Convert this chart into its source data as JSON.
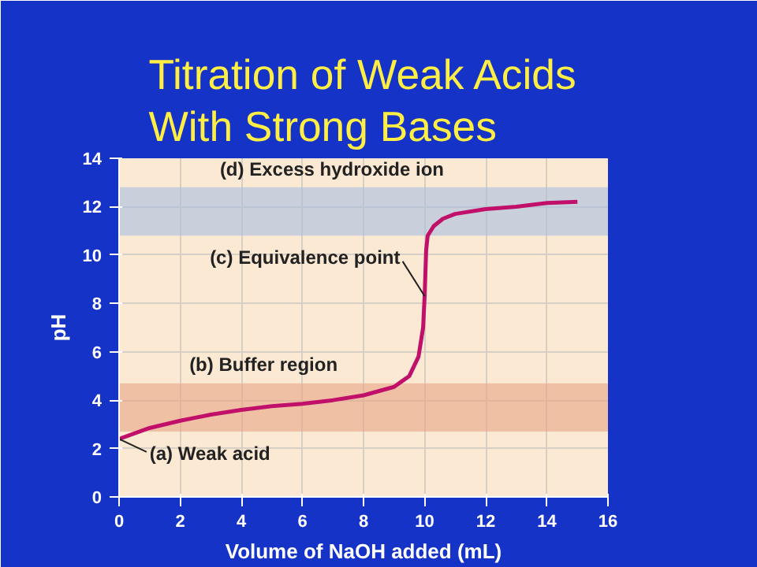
{
  "chart_data": {
    "type": "line",
    "title": "Titration of Weak Acids With Strong Bases",
    "xlabel": "Volume of NaOH added (mL)",
    "ylabel": "pH",
    "series": [
      {
        "color": "#c0106a",
        "x": [
          0,
          1,
          2,
          3,
          4,
          5,
          6,
          7,
          8,
          9,
          9.5,
          9.8,
          9.95,
          10,
          10.05,
          10.1,
          10.3,
          10.6,
          11,
          12,
          13,
          14,
          15
        ],
        "values": [
          2.4,
          2.85,
          3.15,
          3.4,
          3.6,
          3.75,
          3.85,
          4.0,
          4.2,
          4.55,
          5.0,
          5.8,
          7,
          8.3,
          10.2,
          10.8,
          11.2,
          11.5,
          11.7,
          11.9,
          12.0,
          12.15,
          12.2
        ]
      }
    ],
    "annotations": [
      {
        "text": "(a) Weak acid",
        "x": 0,
        "y": 2.4
      },
      {
        "text": "(c) Equivalence point",
        "x": 10,
        "y": 8.3
      }
    ],
    "bands": [
      {
        "axis": "y",
        "from": 2.7,
        "to": 4.7,
        "label": "(b) Buffer region",
        "color": "#eaa585"
      },
      {
        "axis": "y",
        "from": 10.8,
        "to": 12.8,
        "label": "(d) Excess hydroxide ion",
        "color": "#a8c0e0"
      }
    ],
    "xlim": [
      0,
      16
    ],
    "ylim": [
      0,
      14
    ],
    "xticks": [
      0,
      2,
      4,
      6,
      8,
      10,
      12,
      14,
      16
    ],
    "yticks": [
      0,
      2,
      4,
      6,
      8,
      10,
      12,
      14
    ],
    "grid": true,
    "line_style": "solid",
    "marker": "none"
  }
}
